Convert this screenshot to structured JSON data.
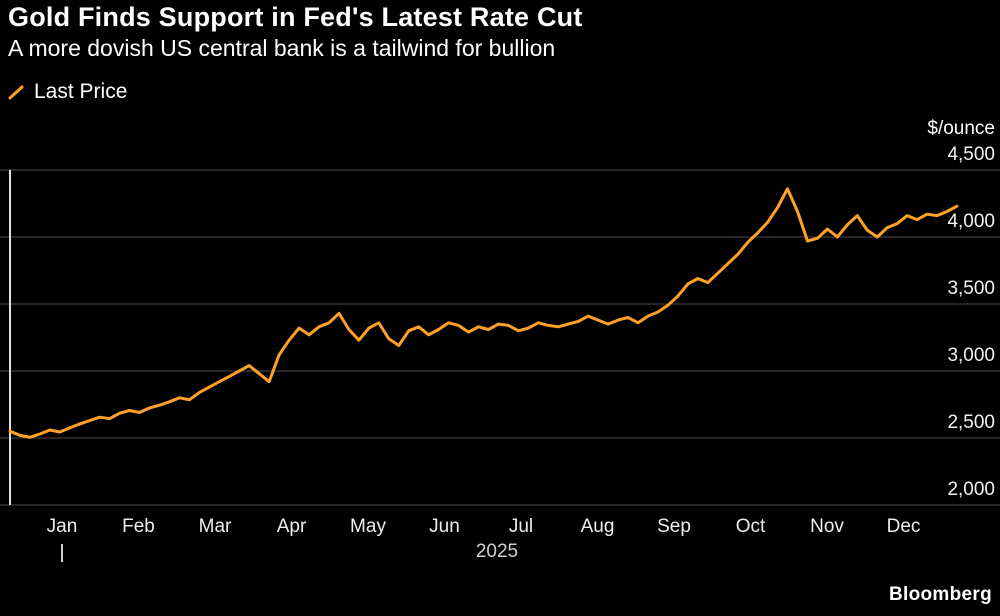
{
  "header": {
    "title": "Gold Finds Support in Fed's Latest Rate Cut",
    "subtitle": "A more dovish US central bank is a tailwind for bullion"
  },
  "footer": {
    "brand": "Bloomberg"
  },
  "chart_data": {
    "type": "line",
    "title": "Gold Finds Support in Fed's Latest Rate Cut",
    "subtitle": "A more dovish US central bank is a tailwind for bullion",
    "unit_label": "$/ounce",
    "legend_position": "top-left",
    "grid": true,
    "line_color": "#FFA028",
    "x": {
      "months": [
        "Jan",
        "Feb",
        "Mar",
        "Apr",
        "May",
        "Jun",
        "Jul",
        "Aug",
        "Sep",
        "Oct",
        "Nov",
        "Dec"
      ],
      "year_label": "2025"
    },
    "y_axis": {
      "min": 2000,
      "max": 4500,
      "ticks": [
        {
          "value": 4500,
          "label": "4,500"
        },
        {
          "value": 4000,
          "label": "4,000"
        },
        {
          "value": 3500,
          "label": "3,500"
        },
        {
          "value": 3000,
          "label": "3,000"
        },
        {
          "value": 2500,
          "label": "2,500"
        },
        {
          "value": 2000,
          "label": "2,000"
        }
      ]
    },
    "series": [
      {
        "name": "Last Price",
        "color": "#FFA028",
        "points_per_month": 8,
        "values": [
          2550,
          2520,
          2505,
          2530,
          2560,
          2545,
          2575,
          2605,
          2630,
          2655,
          2645,
          2685,
          2705,
          2690,
          2725,
          2745,
          2770,
          2800,
          2785,
          2840,
          2880,
          2920,
          2960,
          3000,
          3040,
          2980,
          2920,
          3120,
          3230,
          3320,
          3270,
          3330,
          3360,
          3430,
          3310,
          3230,
          3320,
          3360,
          3240,
          3190,
          3300,
          3330,
          3270,
          3310,
          3360,
          3340,
          3290,
          3330,
          3310,
          3350,
          3340,
          3300,
          3320,
          3360,
          3340,
          3330,
          3350,
          3370,
          3410,
          3380,
          3350,
          3380,
          3400,
          3360,
          3410,
          3440,
          3490,
          3560,
          3650,
          3690,
          3660,
          3730,
          3800,
          3870,
          3960,
          4030,
          4110,
          4220,
          4360,
          4190,
          3970,
          3990,
          4060,
          4000,
          4090,
          4160,
          4050,
          4000,
          4070,
          4100,
          4160,
          4130,
          4170,
          4160,
          4190,
          4230
        ]
      }
    ],
    "source": "Bloomberg"
  }
}
